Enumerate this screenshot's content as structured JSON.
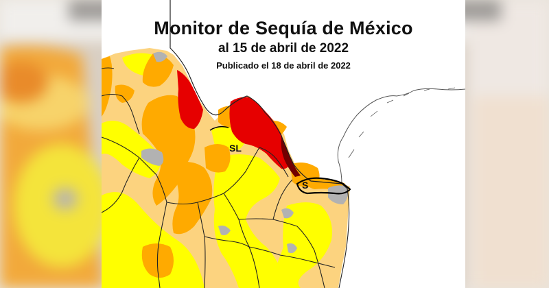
{
  "title": "Monitor de Sequía de México",
  "subtitle": "al 15 de abril de 2022",
  "published": "Publicado el 18 de abril de 2022",
  "region_labels": [
    "SL",
    "S"
  ],
  "colors": {
    "D0_abnormally_dry": "#ffff00",
    "D1_moderate": "#fcd37f",
    "D2_severe": "#ffaa00",
    "D3_extreme": "#e60000",
    "D4_exceptional": "#730000",
    "no_data_water": "#b2b2b2",
    "background_blur": "#d8c7b3"
  }
}
